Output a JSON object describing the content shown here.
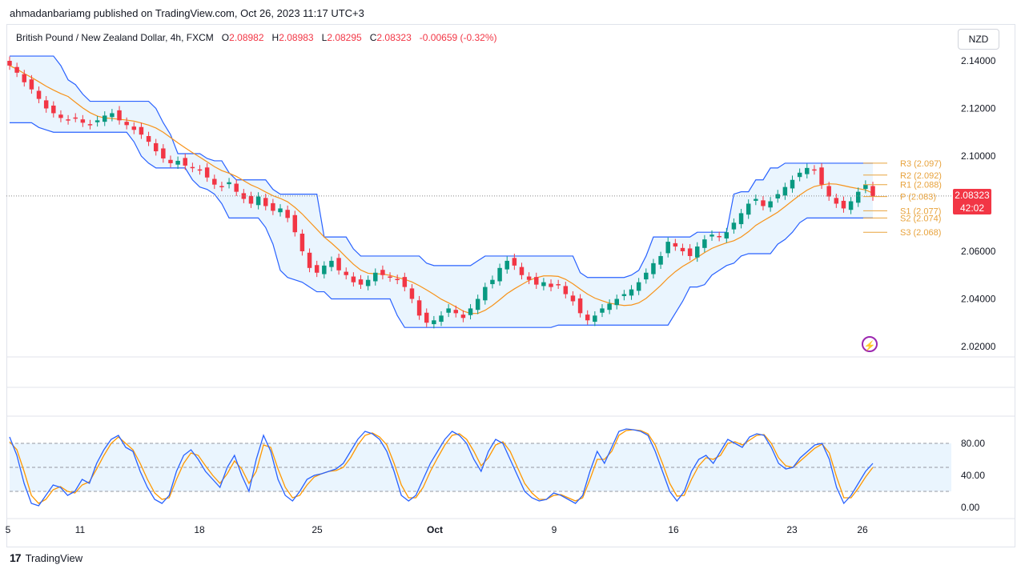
{
  "publisher": "ahmadanbariamg published on TradingView.com, Oct 26, 2023 11:17 UTC+3",
  "header": {
    "symbol": "British Pound / New Zealand Dollar, 4h, FXCM",
    "o_label": "O",
    "o": "2.08982",
    "h_label": "H",
    "h": "2.08983",
    "l_label": "L",
    "l": "2.08295",
    "c_label": "C",
    "c": "2.08323",
    "change": "-0.00659 (-0.32%)"
  },
  "currency": "NZD",
  "price_tag": {
    "price": "2.08323",
    "time": "42:02"
  },
  "footer": {
    "brand": "TradingView",
    "logo": "17"
  },
  "colors": {
    "up": "#089981",
    "down": "#f23645",
    "band": "#2962ff",
    "mid": "#f7931a",
    "fill": "#e3f2fd",
    "stoch_k": "#2962ff",
    "stoch_d": "#ff9800"
  },
  "chart_data": [
    {
      "type": "line",
      "title": "British Pound / New Zealand Dollar, 4h, FXCM",
      "y_ticks": [
        "2.14000",
        "2.12000",
        "2.10000",
        "2.06000",
        "2.04000",
        "2.02000"
      ],
      "ylim": [
        2.0185,
        2.1445
      ],
      "x_ticks": [
        "5",
        "11",
        "18",
        "25",
        "Oct",
        "9",
        "16",
        "23",
        "26"
      ],
      "series": [
        {
          "name": "Close",
          "values": [
            2.138,
            2.135,
            2.131,
            2.128,
            2.124,
            2.12,
            2.118,
            2.116,
            2.115,
            2.116,
            2.114,
            2.113,
            2.115,
            2.117,
            2.118,
            2.115,
            2.113,
            2.111,
            2.109,
            2.106,
            2.102,
            2.099,
            2.097,
            2.098,
            2.096,
            2.095,
            2.094,
            2.091,
            2.088,
            2.087,
            2.089,
            2.085,
            2.082,
            2.08,
            2.083,
            2.079,
            2.077,
            2.078,
            2.074,
            2.068,
            2.06,
            2.053,
            2.051,
            2.054,
            2.056,
            2.052,
            2.05,
            2.047,
            2.046,
            2.048,
            2.051,
            2.05,
            2.049,
            2.048,
            2.045,
            2.04,
            2.033,
            2.03,
            2.031,
            2.033,
            2.036,
            2.034,
            2.032,
            2.036,
            2.04,
            2.045,
            2.048,
            2.053,
            2.056,
            2.054,
            2.05,
            2.048,
            2.046,
            2.047,
            2.045,
            2.046,
            2.042,
            2.039,
            2.034,
            2.031,
            2.033,
            2.036,
            2.038,
            2.04,
            2.042,
            2.044,
            2.047,
            2.051,
            2.055,
            2.058,
            2.064,
            2.062,
            2.06,
            2.058,
            2.062,
            2.065,
            2.067,
            2.066,
            2.068,
            2.072,
            2.076,
            2.08,
            2.082,
            2.079,
            2.081,
            2.084,
            2.087,
            2.09,
            2.093,
            2.095,
            2.094,
            2.088,
            2.083,
            2.08,
            2.078,
            2.081,
            2.085,
            2.088,
            2.083
          ]
        },
        {
          "name": "Upper",
          "values": [
            2.142,
            2.142,
            2.142,
            2.142,
            2.142,
            2.142,
            2.142,
            2.138,
            2.132,
            2.13,
            2.126,
            2.123,
            2.123,
            2.123,
            2.123,
            2.123,
            2.123,
            2.123,
            2.123,
            2.123,
            2.12,
            2.114,
            2.109,
            2.101,
            2.101,
            2.101,
            2.101,
            2.099,
            2.098,
            2.098,
            2.093,
            2.09,
            2.09,
            2.09,
            2.09,
            2.09,
            2.086,
            2.084,
            2.084,
            2.084,
            2.084,
            2.084,
            2.084,
            2.066,
            2.066,
            2.066,
            2.066,
            2.061,
            2.058,
            2.058,
            2.058,
            2.058,
            2.058,
            2.058,
            2.058,
            2.058,
            2.058,
            2.055,
            2.054,
            2.054,
            2.054,
            2.054,
            2.054,
            2.054,
            2.056,
            2.058,
            2.058,
            2.058,
            2.058,
            2.058,
            2.058,
            2.058,
            2.058,
            2.058,
            2.058,
            2.058,
            2.058,
            2.058,
            2.051,
            2.049,
            2.049,
            2.049,
            2.049,
            2.049,
            2.049,
            2.05,
            2.052,
            2.058,
            2.066,
            2.066,
            2.066,
            2.066,
            2.066,
            2.066,
            2.068,
            2.068,
            2.068,
            2.068,
            2.068,
            2.084,
            2.085,
            2.085,
            2.09,
            2.09,
            2.095,
            2.095,
            2.097,
            2.097,
            2.097,
            2.097,
            2.097,
            2.097,
            2.097,
            2.097,
            2.097,
            2.097,
            2.097,
            2.097,
            2.097
          ]
        },
        {
          "name": "Lower",
          "values": [
            2.114,
            2.114,
            2.114,
            2.114,
            2.112,
            2.111,
            2.11,
            2.11,
            2.11,
            2.11,
            2.11,
            2.11,
            2.11,
            2.11,
            2.11,
            2.11,
            2.11,
            2.106,
            2.1,
            2.097,
            2.095,
            2.095,
            2.095,
            2.095,
            2.095,
            2.09,
            2.087,
            2.086,
            2.084,
            2.08,
            2.074,
            2.074,
            2.074,
            2.074,
            2.074,
            2.07,
            2.063,
            2.052,
            2.049,
            2.048,
            2.047,
            2.045,
            2.043,
            2.043,
            2.04,
            2.04,
            2.04,
            2.04,
            2.04,
            2.04,
            2.04,
            2.04,
            2.04,
            2.033,
            2.028,
            2.028,
            2.028,
            2.028,
            2.028,
            2.028,
            2.028,
            2.028,
            2.028,
            2.028,
            2.028,
            2.028,
            2.028,
            2.028,
            2.028,
            2.028,
            2.028,
            2.028,
            2.028,
            2.028,
            2.028,
            2.029,
            2.029,
            2.029,
            2.029,
            2.029,
            2.029,
            2.029,
            2.029,
            2.029,
            2.029,
            2.029,
            2.029,
            2.029,
            2.029,
            2.029,
            2.029,
            2.034,
            2.039,
            2.045,
            2.045,
            2.046,
            2.05,
            2.052,
            2.054,
            2.055,
            2.058,
            2.059,
            2.059,
            2.059,
            2.059,
            2.063,
            2.065,
            2.068,
            2.072,
            2.074,
            2.074,
            2.074,
            2.074,
            2.074,
            2.074,
            2.074,
            2.074,
            2.074,
            2.074
          ]
        }
      ]
    },
    {
      "type": "line",
      "title": "",
      "y_ticks": [
        "80.00",
        "40.00",
        "0.00"
      ],
      "ylim": [
        -3,
        100
      ],
      "band": [
        20,
        80
      ],
      "series": [
        {
          "name": "",
          "values": [
            88,
            65,
            30,
            5,
            2,
            15,
            28,
            25,
            15,
            20,
            35,
            30,
            55,
            72,
            85,
            90,
            75,
            70,
            45,
            25,
            10,
            5,
            15,
            45,
            65,
            72,
            60,
            45,
            35,
            25,
            50,
            65,
            40,
            20,
            60,
            90,
            70,
            35,
            15,
            8,
            20,
            35,
            40,
            42,
            45,
            48,
            55,
            70,
            85,
            95,
            92,
            85,
            70,
            45,
            15,
            8,
            15,
            35,
            55,
            70,
            85,
            95,
            90,
            80,
            60,
            45,
            70,
            85,
            80,
            60,
            40,
            20,
            12,
            8,
            10,
            18,
            15,
            10,
            5,
            15,
            45,
            70,
            55,
            75,
            95,
            98,
            97,
            95,
            90,
            70,
            45,
            20,
            8,
            20,
            45,
            60,
            65,
            55,
            70,
            85,
            80,
            75,
            88,
            92,
            90,
            75,
            55,
            48,
            50,
            62,
            70,
            78,
            80,
            60,
            25,
            5,
            15,
            30,
            45,
            55
          ]
        },
        {
          "name": "",
          "values": [
            82,
            72,
            45,
            15,
            5,
            10,
            22,
            26,
            20,
            18,
            28,
            32,
            48,
            65,
            80,
            88,
            80,
            72,
            55,
            35,
            18,
            10,
            12,
            35,
            55,
            68,
            65,
            52,
            40,
            30,
            42,
            58,
            48,
            30,
            45,
            78,
            75,
            48,
            25,
            12,
            15,
            28,
            38,
            42,
            45,
            46,
            50,
            62,
            78,
            90,
            93,
            88,
            78,
            55,
            28,
            12,
            12,
            25,
            45,
            62,
            78,
            90,
            92,
            85,
            70,
            52,
            62,
            78,
            82,
            70,
            50,
            30,
            18,
            10,
            10,
            15,
            16,
            12,
            8,
            12,
            35,
            60,
            60,
            70,
            90,
            96,
            97,
            96,
            92,
            78,
            55,
            30,
            14,
            15,
            35,
            52,
            62,
            60,
            65,
            80,
            82,
            78,
            84,
            90,
            91,
            80,
            62,
            52,
            50,
            58,
            66,
            74,
            79,
            68,
            38,
            12,
            12,
            24,
            38,
            50
          ]
        }
      ]
    }
  ]
}
